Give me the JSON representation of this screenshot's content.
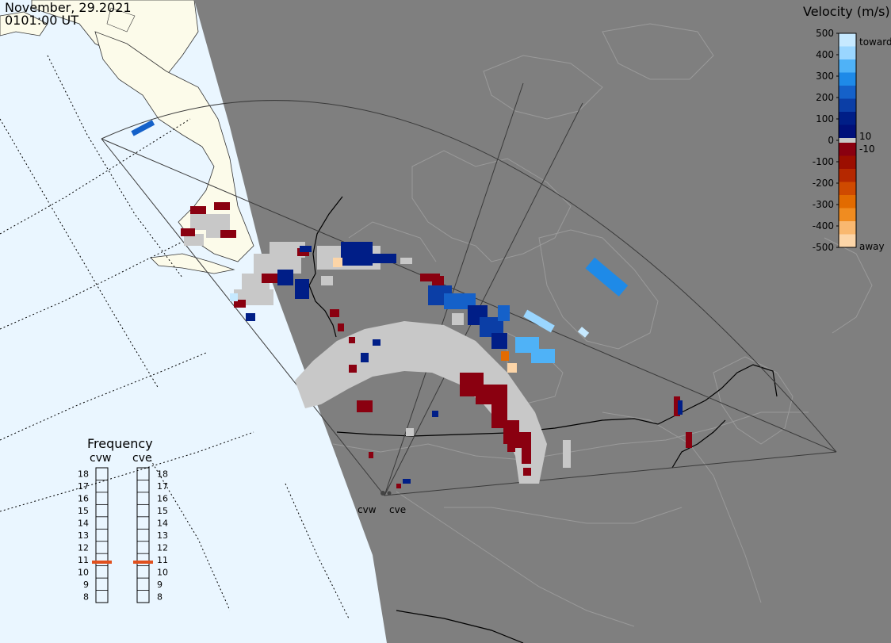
{
  "header": {
    "date": "November, 29.2021",
    "time": "0101:00 UT"
  },
  "colorbar": {
    "title": "Velocity (m/s)",
    "ticks": [
      "500",
      "400",
      "300",
      "200",
      "100",
      "0",
      "-100",
      "-200",
      "-300",
      "-400",
      "-500"
    ],
    "label_10": "10",
    "label_neg10": "-10",
    "label_toward": "toward",
    "label_away": "away",
    "colors_toward": [
      "#c6e9ff",
      "#9ad6ff",
      "#4fb2f7",
      "#1e8ae8",
      "#1561c9",
      "#0b3ea6",
      "#001e87",
      "#00107a"
    ],
    "colors_away": [
      "#8a0010",
      "#9c0e00",
      "#b52800",
      "#cf4a00",
      "#e26b00",
      "#f08c20",
      "#f9b870",
      "#fcd5a8"
    ],
    "ground_scatter_color": "#c8c8c8"
  },
  "radars": {
    "west": "cvw",
    "east": "cve"
  },
  "frequency": {
    "title": "Frequency",
    "west_label": "cvw",
    "east_label": "cve",
    "levels": [
      "18",
      "17",
      "16",
      "15",
      "14",
      "13",
      "12",
      "11",
      "10",
      "9",
      "8"
    ],
    "west_value": 10.8,
    "east_value": 10.8,
    "marker_color": "#e0501e"
  }
}
